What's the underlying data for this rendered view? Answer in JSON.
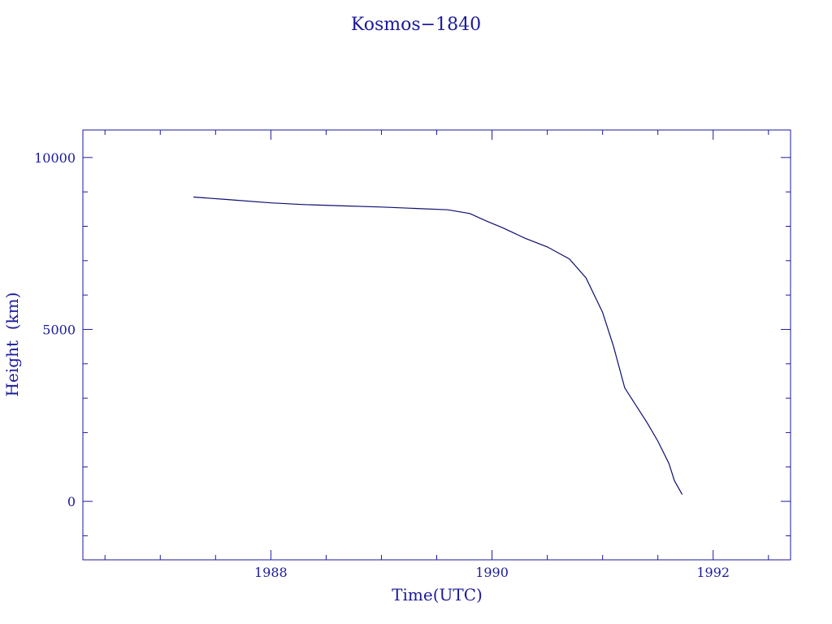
{
  "chart_data": {
    "type": "line",
    "title": "Kosmos−1840",
    "xlabel": "Time(UTC)",
    "ylabel": "Height  (km)",
    "xlim": [
      1986.3,
      1992.7
    ],
    "ylim": [
      -1700,
      10800
    ],
    "x_ticks": [
      {
        "value": 1988,
        "label": "1988"
      },
      {
        "value": 1990,
        "label": "1990"
      },
      {
        "value": 1992,
        "label": "1992"
      }
    ],
    "y_ticks": [
      {
        "value": 0,
        "label": "0"
      },
      {
        "value": 5000,
        "label": "5000"
      },
      {
        "value": 10000,
        "label": "10000"
      }
    ],
    "grid": false,
    "colors": {
      "axis": "#1a1a9c",
      "line": "#0d0d70"
    },
    "series": [
      {
        "x": [
          1987.3,
          1987.6,
          1988.0,
          1988.3,
          1988.6,
          1989.0,
          1989.3,
          1989.6,
          1989.8,
          1989.95,
          1990.1,
          1990.3,
          1990.5,
          1990.7,
          1990.85,
          1991.0,
          1991.1,
          1991.2,
          1991.3,
          1991.4,
          1991.5,
          1991.6,
          1991.65,
          1991.72
        ],
        "y": [
          8850,
          8780,
          8680,
          8630,
          8600,
          8560,
          8520,
          8480,
          8370,
          8150,
          7950,
          7650,
          7400,
          7050,
          6500,
          5500,
          4500,
          3300,
          2800,
          2300,
          1750,
          1100,
          600,
          200
        ]
      }
    ]
  }
}
